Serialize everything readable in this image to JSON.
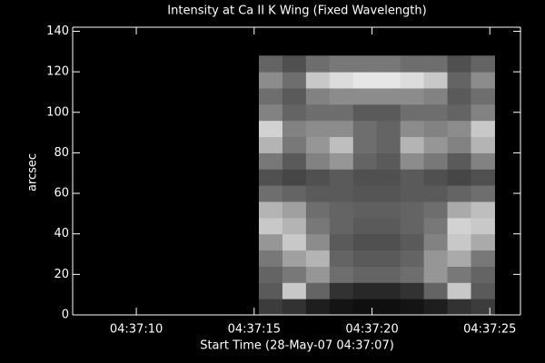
{
  "chart_data": {
    "type": "image",
    "title": "Intensity at Ca II K Wing (Fixed Wavelength)",
    "x_label": "Start Time (28-May-07 04:37:07)",
    "y_label": "arcsec",
    "xlim": [
      0.3,
      19.3
    ],
    "ylim": [
      0,
      142
    ],
    "xticks": [
      {
        "value": 3,
        "label": "04:37:10"
      },
      {
        "value": 8,
        "label": "04:37:15"
      },
      {
        "value": 13,
        "label": "04:37:20"
      },
      {
        "value": 18,
        "label": "04:37:25"
      }
    ],
    "yticks": [
      0,
      20,
      40,
      60,
      80,
      100,
      120,
      140
    ],
    "image_x": [
      8.2,
      18.2
    ],
    "image_y": [
      0,
      128
    ],
    "zlim": [
      0,
      255
    ],
    "z": [
      [
        60,
        50,
        30,
        20,
        15,
        15,
        20,
        30,
        50,
        60
      ],
      [
        90,
        200,
        100,
        50,
        40,
        40,
        50,
        100,
        200,
        90
      ],
      [
        100,
        120,
        150,
        110,
        100,
        100,
        110,
        150,
        120,
        100
      ],
      [
        120,
        160,
        180,
        100,
        90,
        90,
        100,
        150,
        170,
        120
      ],
      [
        150,
        200,
        140,
        90,
        80,
        80,
        90,
        130,
        200,
        170
      ],
      [
        200,
        180,
        120,
        100,
        90,
        90,
        100,
        120,
        210,
        200
      ],
      [
        180,
        160,
        110,
        100,
        95,
        95,
        100,
        110,
        170,
        190
      ],
      [
        110,
        100,
        90,
        90,
        85,
        85,
        90,
        90,
        100,
        110
      ],
      [
        80,
        70,
        80,
        90,
        80,
        80,
        90,
        80,
        70,
        80
      ],
      [
        120,
        90,
        130,
        150,
        100,
        90,
        140,
        120,
        90,
        130
      ],
      [
        180,
        120,
        150,
        190,
        110,
        100,
        180,
        150,
        130,
        180
      ],
      [
        210,
        130,
        140,
        140,
        110,
        100,
        140,
        130,
        140,
        200
      ],
      [
        130,
        100,
        110,
        110,
        90,
        90,
        110,
        110,
        100,
        130
      ],
      [
        110,
        90,
        130,
        140,
        140,
        140,
        140,
        130,
        90,
        110
      ],
      [
        140,
        110,
        200,
        220,
        230,
        230,
        220,
        200,
        100,
        140
      ],
      [
        100,
        80,
        110,
        120,
        120,
        120,
        110,
        110,
        80,
        100
      ]
    ]
  }
}
